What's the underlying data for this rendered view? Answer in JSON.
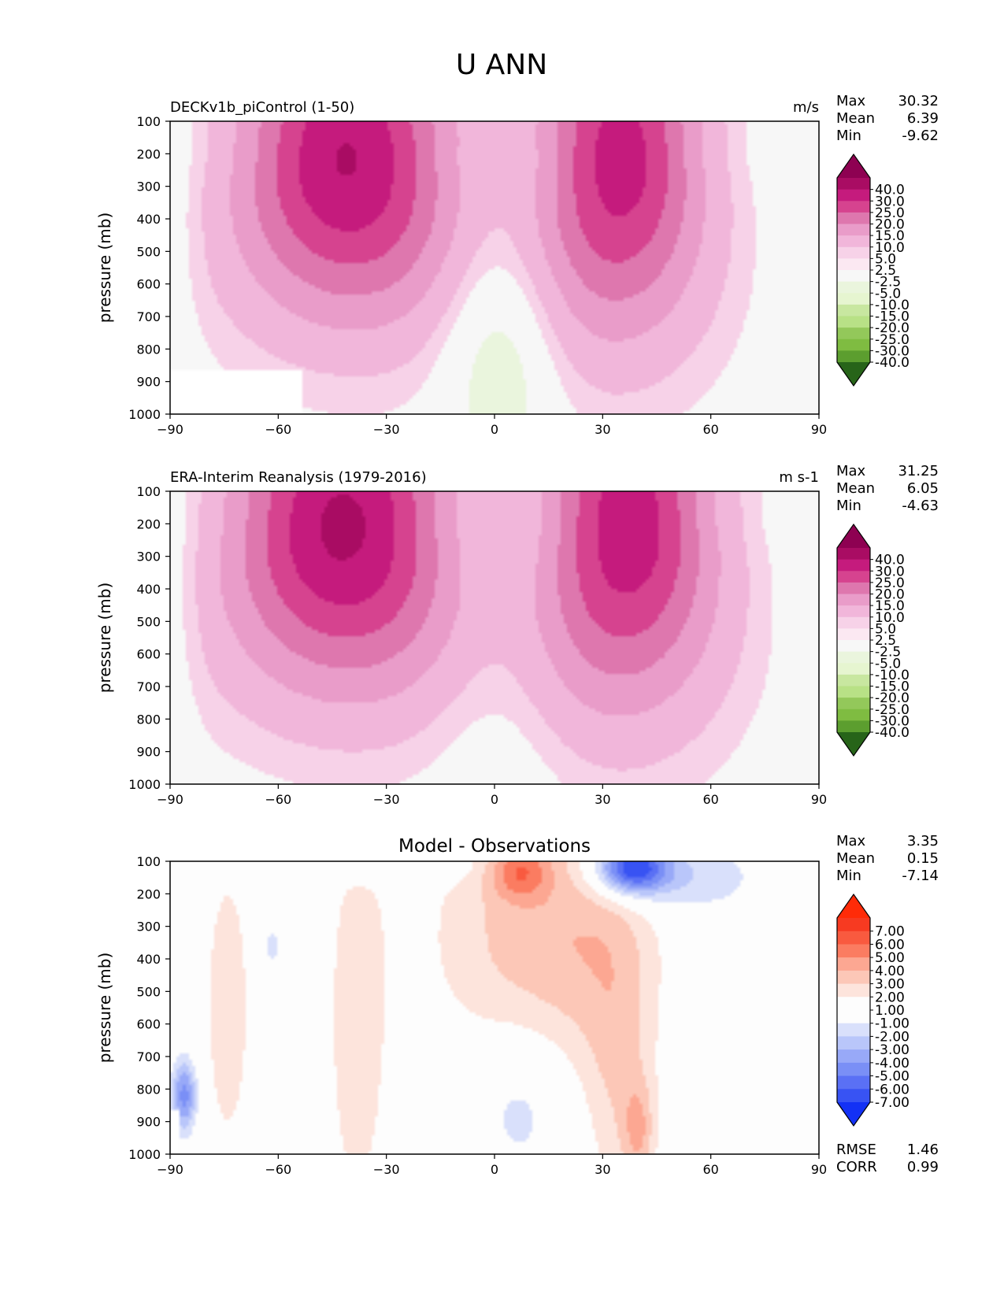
{
  "figure": {
    "title": "U ANN",
    "background": "#ffffff"
  },
  "colors": {
    "pos_scale": [
      "#8e0152",
      "#a90c63",
      "#c51b7d",
      "#d6438f",
      "#de77ae",
      "#e99cc9",
      "#f1b6da",
      "#f7d2e8",
      "#fbe8f2",
      "#f7f7f7"
    ],
    "neg_scale": [
      "#f7f7f7",
      "#eaf5dd",
      "#e6f5d0",
      "#c8e7a0",
      "#b8e186",
      "#93c85a",
      "#7fbc41",
      "#5c9e2f",
      "#4d9221",
      "#276419"
    ],
    "diff_pos": [
      "#fdfdfd",
      "#fde4dc",
      "#fcc7b7",
      "#fca792",
      "#fb7c61",
      "#f95a3f",
      "#f73a21",
      "#ff2b08"
    ],
    "diff_neg": [
      "#fdfdfd",
      "#d9e0fb",
      "#b9c6fa",
      "#98a9f8",
      "#7a8ff6",
      "#5a70f5",
      "#3853f3",
      "#1331f5"
    ]
  },
  "chart_data": [
    {
      "type": "heatmap",
      "name": "model",
      "subtitle": "DECKv1b_piControl (1-50)",
      "units": "m/s",
      "ylabel": "pressure (mb)",
      "x_ticks": [
        -90,
        -60,
        -30,
        0,
        30,
        60,
        90
      ],
      "y_ticks": [
        100,
        200,
        300,
        400,
        500,
        600,
        700,
        800,
        900,
        1000
      ],
      "xlim": [
        -90,
        90
      ],
      "ylim": [
        1000,
        100
      ],
      "stats": [
        {
          "label": "Max",
          "value": "30.32"
        },
        {
          "label": "Mean",
          "value": "6.39"
        },
        {
          "label": "Min",
          "value": "-9.62"
        }
      ],
      "colorbar_levels": [
        "40.0",
        "30.0",
        "25.0",
        "20.0",
        "15.0",
        "10.0",
        "5.0",
        "2.5",
        "-2.5",
        "-5.0",
        "-10.0",
        "-15.0",
        "-20.0",
        "-25.0",
        "-30.0",
        "-40.0"
      ],
      "masked_region": {
        "x": [
          -90,
          -53
        ],
        "p": [
          865,
          1000
        ]
      },
      "jets": [
        {
          "lat": -41,
          "p": 220,
          "peak": 30.3,
          "sx": 21,
          "sp": 350
        },
        {
          "lat": 35,
          "p": 220,
          "peak": 27.5,
          "sx": 16,
          "sp": 390
        }
      ],
      "easterlies": [
        {
          "lat": 2,
          "p": 760,
          "peak": -9.6,
          "sx": 12,
          "sp": 280
        }
      ]
    },
    {
      "type": "heatmap",
      "name": "obs",
      "subtitle": "ERA-Interim Reanalysis (1979-2016)",
      "units": "m s-1",
      "ylabel": "pressure (mb)",
      "x_ticks": [
        -90,
        -60,
        -30,
        0,
        30,
        60,
        90
      ],
      "y_ticks": [
        100,
        200,
        300,
        400,
        500,
        600,
        700,
        800,
        900,
        1000
      ],
      "xlim": [
        -90,
        90
      ],
      "ylim": [
        1000,
        100
      ],
      "stats": [
        {
          "label": "Max",
          "value": "31.25"
        },
        {
          "label": "Mean",
          "value": "6.05"
        },
        {
          "label": "Min",
          "value": "-4.63"
        }
      ],
      "colorbar_levels": [
        "40.0",
        "30.0",
        "25.0",
        "20.0",
        "15.0",
        "10.0",
        "5.0",
        "2.5",
        "-2.5",
        "-5.0",
        "-10.0",
        "-15.0",
        "-20.0",
        "-25.0",
        "-30.0",
        "-40.0"
      ],
      "jets": [
        {
          "lat": -42,
          "p": 210,
          "peak": 31.2,
          "sx": 22,
          "sp": 360
        },
        {
          "lat": 37,
          "p": 210,
          "peak": 28.5,
          "sx": 17,
          "sp": 400
        }
      ],
      "easterlies": [
        {
          "lat": 2,
          "p": 650,
          "peak": -4.6,
          "sx": 14,
          "sp": 420
        }
      ]
    },
    {
      "type": "heatmap",
      "name": "diff",
      "subtitle": "Model - Observations",
      "ylabel": "pressure (mb)",
      "x_ticks": [
        -90,
        -60,
        -30,
        0,
        30,
        60,
        90
      ],
      "y_ticks": [
        100,
        200,
        300,
        400,
        500,
        600,
        700,
        800,
        900,
        1000
      ],
      "xlim": [
        -90,
        90
      ],
      "ylim": [
        1000,
        100
      ],
      "stats": [
        {
          "label": "Max",
          "value": "3.35"
        },
        {
          "label": "Mean",
          "value": "0.15"
        },
        {
          "label": "Min",
          "value": "-7.14"
        }
      ],
      "colorbar_levels": [
        "7.00",
        "6.00",
        "5.00",
        "4.00",
        "3.00",
        "2.00",
        "1.00",
        "-1.00",
        "-2.00",
        "-3.00",
        "-4.00",
        "-5.00",
        "-6.00",
        "-7.00"
      ],
      "footer_stats": [
        {
          "label": "RMSE",
          "value": "1.46"
        },
        {
          "label": "CORR",
          "value": "0.99"
        }
      ],
      "masked_region": {
        "x": [
          -90,
          -87
        ],
        "p": [
          865,
          1000
        ]
      },
      "features": [
        {
          "lat": 7,
          "p": 130,
          "amp": 3.35,
          "sx": 6,
          "sp": 60
        },
        {
          "lat": 8,
          "p": 330,
          "amp": 2.3,
          "sx": 18,
          "sp": 260
        },
        {
          "lat": 30,
          "p": 330,
          "amp": 1.6,
          "sx": 12,
          "sp": 420
        },
        {
          "lat": -38,
          "p": 600,
          "amp": 1.5,
          "sx": 7,
          "sp": 520
        },
        {
          "lat": -74,
          "p": 550,
          "amp": 1.4,
          "sx": 6,
          "sp": 420
        },
        {
          "lat": 40,
          "p": 930,
          "amp": 2.3,
          "sx": 3,
          "sp": 110
        },
        {
          "lat": 35,
          "p": 760,
          "amp": 1.3,
          "sx": 6,
          "sp": 300
        },
        {
          "lat": 38,
          "p": 120,
          "amp": -7.14,
          "sx": 7,
          "sp": 55
        },
        {
          "lat": 50,
          "p": 150,
          "amp": -2.0,
          "sx": 16,
          "sp": 80
        },
        {
          "lat": 8,
          "p": 850,
          "amp": -1.5,
          "sx": 10,
          "sp": 170
        },
        {
          "lat": -62,
          "p": 360,
          "amp": -1.4,
          "sx": 2.5,
          "sp": 60
        },
        {
          "lat": -30,
          "p": 110,
          "amp": -1.3,
          "sx": 18,
          "sp": 35
        },
        {
          "lat": -86,
          "p": 820,
          "amp": -4.5,
          "sx": 2.5,
          "sp": 80
        }
      ]
    }
  ]
}
